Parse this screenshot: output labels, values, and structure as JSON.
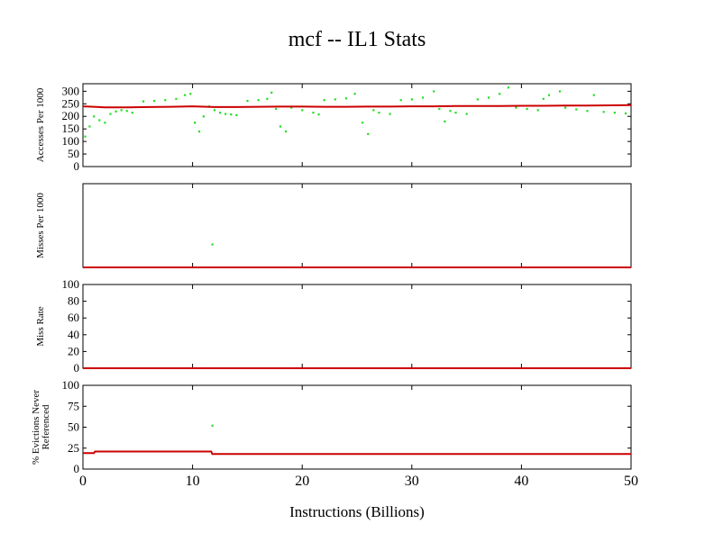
{
  "title": "mcf -- IL1  Stats",
  "xlabel": "Instructions (Billions)",
  "colors": {
    "mean_line": "#cc0000",
    "samples": "#22dd22",
    "axes": "#000000"
  },
  "chart_data": [
    {
      "type": "scatter",
      "ylabel": "Accesses Per 1000",
      "xlim": [
        0,
        50
      ],
      "ylim": [
        0,
        330
      ],
      "yticks": [
        0,
        50,
        100,
        150,
        200,
        250,
        300
      ],
      "yticklabels": [
        "0",
        "50",
        "100",
        "150",
        "200",
        "250",
        "300"
      ],
      "xticks": [
        0,
        10,
        20,
        30,
        40,
        50
      ],
      "xticklabels": [],
      "series": [
        {
          "role": "samples",
          "x": [
            0.2,
            0.6,
            1.0,
            1.5,
            2.0,
            2.5,
            3.0,
            3.5,
            4.0,
            4.5,
            5.5,
            6.5,
            7.5,
            8.5,
            9.3,
            9.8,
            10.2,
            10.6,
            11.0,
            11.5,
            12.0,
            12.5,
            13.0,
            13.5,
            14.0,
            15.0,
            16.0,
            16.8,
            17.2,
            17.6,
            18.0,
            18.5,
            19.0,
            20.0,
            21.0,
            21.5,
            22.0,
            23.0,
            24.0,
            24.8,
            25.5,
            26.0,
            26.5,
            27.0,
            28.0,
            29.0,
            30.0,
            31.0,
            32.0,
            32.5,
            33.0,
            33.5,
            34.0,
            35.0,
            36.0,
            37.0,
            38.0,
            38.8,
            39.5,
            40.5,
            41.5,
            42.0,
            42.5,
            43.5,
            44.0,
            45.0,
            46.0,
            46.6,
            47.5,
            48.5,
            49.5
          ],
          "y": [
            120,
            160,
            200,
            185,
            175,
            210,
            220,
            225,
            222,
            215,
            260,
            262,
            265,
            270,
            285,
            290,
            175,
            140,
            200,
            240,
            225,
            215,
            210,
            208,
            205,
            262,
            265,
            270,
            295,
            230,
            160,
            140,
            235,
            225,
            215,
            208,
            265,
            268,
            272,
            290,
            175,
            130,
            225,
            215,
            210,
            265,
            268,
            275,
            300,
            230,
            180,
            222,
            215,
            210,
            268,
            275,
            290,
            315,
            235,
            230,
            225,
            270,
            285,
            300,
            235,
            228,
            222,
            285,
            218,
            215,
            212
          ]
        },
        {
          "role": "mean",
          "x": [
            0,
            1,
            2,
            4,
            6,
            8,
            10,
            12,
            14,
            16,
            18,
            20,
            22,
            24,
            26,
            28,
            30,
            32,
            34,
            36,
            38,
            40,
            42,
            44,
            46,
            48,
            50
          ],
          "y": [
            240,
            238,
            236,
            236,
            237,
            238,
            240,
            237,
            237,
            238,
            239,
            239,
            238,
            238,
            239,
            239,
            240,
            240,
            241,
            241,
            241,
            242,
            242,
            243,
            243,
            244,
            245
          ]
        }
      ]
    },
    {
      "type": "scatter",
      "ylabel": "Misses Per 1000",
      "xlim": [
        0,
        50
      ],
      "ylim": [
        0,
        0.04
      ],
      "yticks": [],
      "yticklabels": [],
      "xticks": [
        0,
        10,
        20,
        30,
        40,
        50
      ],
      "xticklabels": [],
      "series": [
        {
          "role": "samples",
          "x": [
            11.8
          ],
          "y": [
            0.011
          ]
        },
        {
          "role": "mean",
          "x": [
            0,
            50
          ],
          "y": [
            0.0,
            0.0
          ]
        }
      ]
    },
    {
      "type": "line",
      "ylabel": "Miss Rate",
      "xlim": [
        0,
        50
      ],
      "ylim": [
        0,
        100
      ],
      "yticks": [
        0,
        20,
        40,
        60,
        80,
        100
      ],
      "yticklabels": [
        "0",
        "20",
        "40",
        "60",
        "80",
        "100"
      ],
      "xticks": [
        0,
        10,
        20,
        30,
        40,
        50
      ],
      "xticklabels": [],
      "series": [
        {
          "role": "mean",
          "x": [
            0,
            50
          ],
          "y": [
            0,
            0
          ]
        }
      ]
    },
    {
      "type": "scatter",
      "ylabel": "% Evictions Never Referenced",
      "xlim": [
        0,
        50
      ],
      "ylim": [
        0,
        100
      ],
      "yticks": [
        0,
        25,
        50,
        75,
        100
      ],
      "yticklabels": [
        "0",
        "25",
        "50",
        "75",
        "100"
      ],
      "xticks": [
        0,
        10,
        20,
        30,
        40,
        50
      ],
      "xticklabels": [
        "0",
        "10",
        "20",
        "30",
        "40",
        "50"
      ],
      "series": [
        {
          "role": "samples",
          "x": [
            11.8
          ],
          "y": [
            52
          ]
        },
        {
          "role": "mean",
          "x": [
            0,
            1,
            1.1,
            11.7,
            11.8,
            50
          ],
          "y": [
            19,
            19,
            21,
            21,
            18,
            18
          ]
        }
      ]
    }
  ]
}
